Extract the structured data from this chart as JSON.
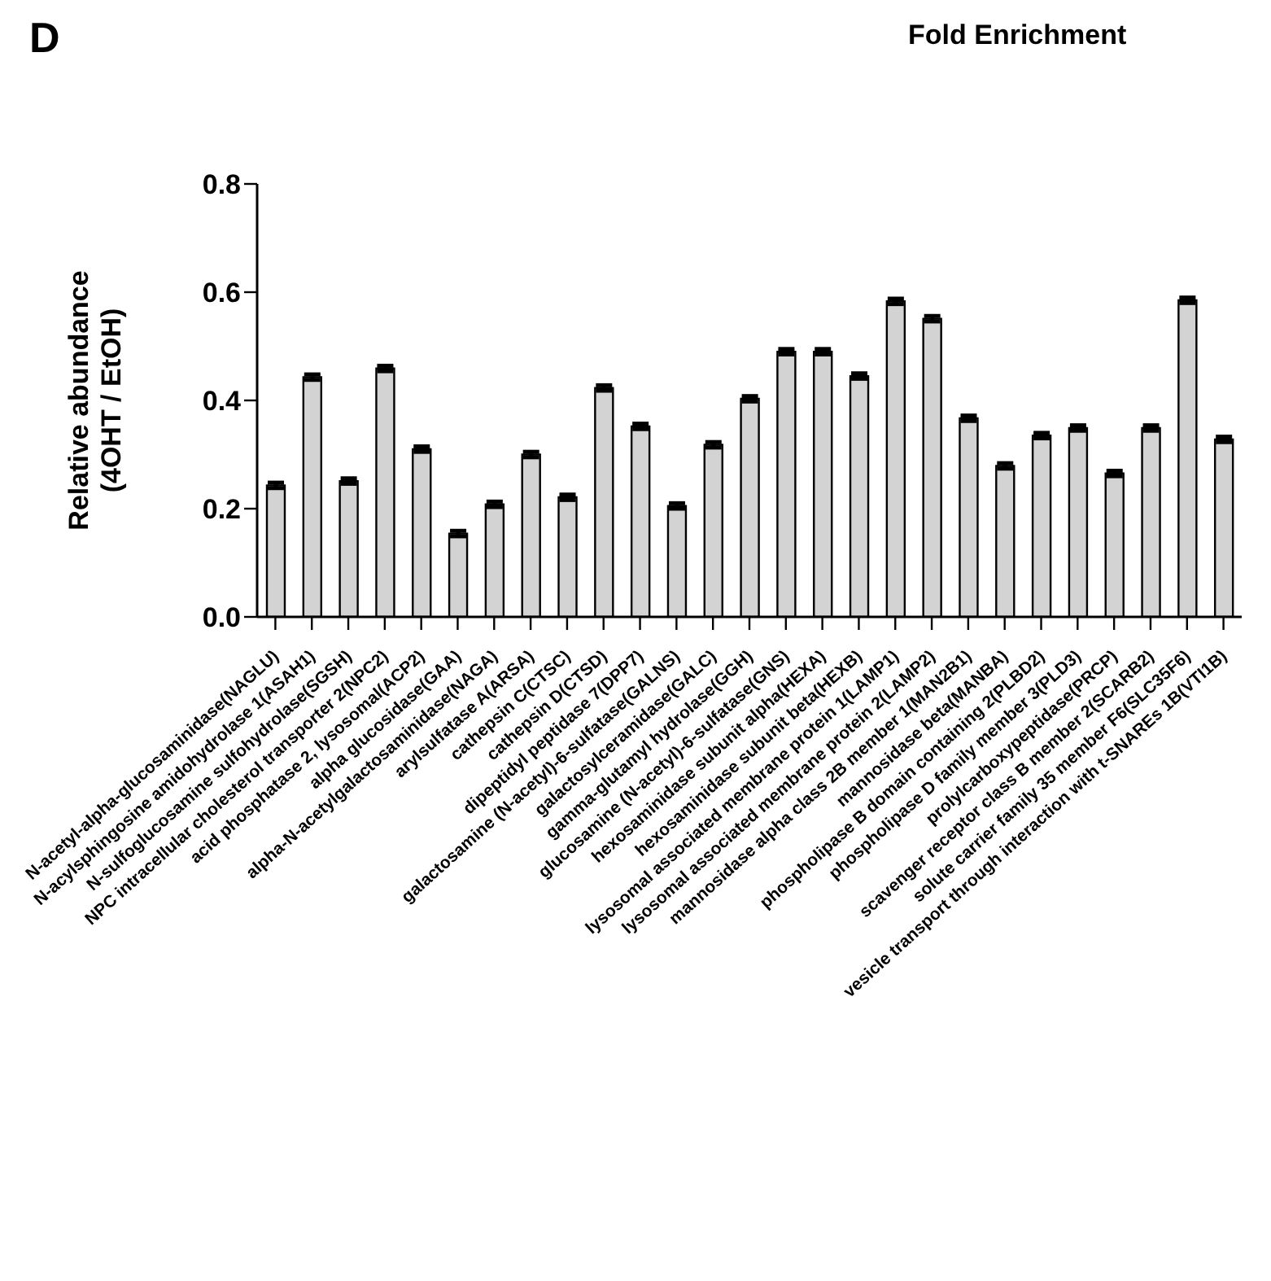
{
  "chart_data": {
    "type": "bar",
    "title": "Fold Enrichment",
    "annotations": [
      "D"
    ],
    "ylabel": "Relative abundance\n(4OHT / EtOH)",
    "categories": [
      "N-acetyl-alpha-glucosaminidase(NAGLU)",
      "N-acylsphingosine amidohydrolase 1(ASAH1)",
      "N-sulfoglucosamine sulfohydrolase(SGSH)",
      "NPC intracellular cholesterol transporter 2(NPC2)",
      "acid phosphatase 2, lysosomal(ACP2)",
      "alpha glucosidase(GAA)",
      "alpha-N-acetylgalactosaminidase(NAGA)",
      "arylsulfatase A(ARSA)",
      "cathepsin C(CTSC)",
      "cathepsin D(CTSD)",
      "dipeptidyl peptidase 7(DPP7)",
      "galactosamine (N-acetyl)-6-sulfatase(GALNS)",
      "galactosylceramidase(GALC)",
      "gamma-glutamyl hydrolase(GGH)",
      "glucosamine (N-acetyl)-6-sulfatase(GNS)",
      "hexosaminidase subunit alpha(HEXA)",
      "hexosaminidase subunit beta(HEXB)",
      "lysosomal associated membrane protein 1(LAMP1)",
      "lysosomal associated membrane protein 2(LAMP2)",
      "mannosidase alpha class 2B member 1(MAN2B1)",
      "mannosidase beta(MANBA)",
      "phospholipase B domain containing 2(PLBD2)",
      "phospholipase D family member 3(PLD3)",
      "prolylcarboxypeptidase(PRCP)",
      "scavenger receptor class B member 2(SCARB2)",
      "solute carrier family 35 member F6(SLC35F6)",
      "vesicle transport through interaction with t-SNAREs 1B(VTI1B)"
    ],
    "values": [
      0.243,
      0.443,
      0.251,
      0.459,
      0.31,
      0.154,
      0.208,
      0.3,
      0.221,
      0.423,
      0.352,
      0.205,
      0.318,
      0.403,
      0.49,
      0.49,
      0.445,
      0.583,
      0.551,
      0.367,
      0.279,
      0.335,
      0.349,
      0.265,
      0.349,
      0.585,
      0.328
    ],
    "errors": [
      0.005,
      0.005,
      0.005,
      0.005,
      0.005,
      0.005,
      0.005,
      0.005,
      0.005,
      0.005,
      0.005,
      0.005,
      0.005,
      0.005,
      0.005,
      0.005,
      0.005,
      0.005,
      0.005,
      0.005,
      0.005,
      0.005,
      0.005,
      0.005,
      0.005,
      0.005,
      0.005
    ],
    "color": "#d3d3d3",
    "ylim": [
      0,
      0.8
    ],
    "yticks": [
      {
        "value": 0,
        "label": "0.0"
      },
      {
        "value": 0.2,
        "label": "0.2"
      },
      {
        "value": 0.4,
        "label": "0.4"
      },
      {
        "value": 0.6,
        "label": "0.6"
      },
      {
        "value": 0.8,
        "label": "0.8"
      }
    ],
    "grid": false,
    "legend": false
  }
}
